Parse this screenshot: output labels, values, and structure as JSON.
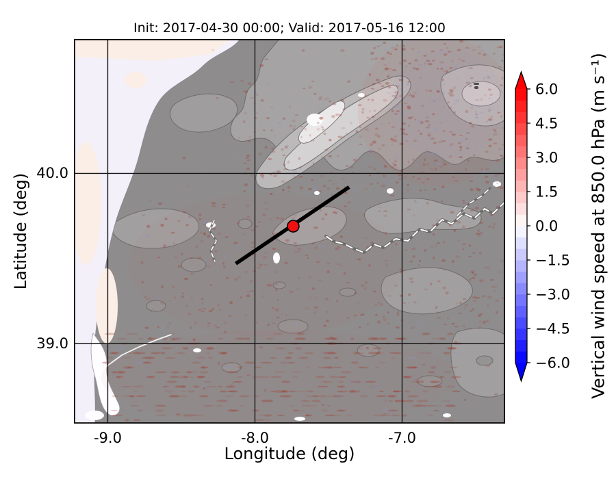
{
  "chart_data": {
    "type": "heatmap",
    "title": "Init: 2017-04-30 00:00; Valid: 2017-05-16 12:00",
    "xlabel": "Longitude (deg)",
    "ylabel": "Latitude (deg)",
    "x_tick_values": [
      -9.0,
      -8.0,
      -7.0
    ],
    "x_tick_labels": [
      "-9.0",
      "-8.0",
      "-7.0"
    ],
    "y_tick_values": [
      40.0,
      39.0
    ],
    "y_tick_labels": [
      "40.0",
      "39.0"
    ],
    "extent": {
      "lon_min": -9.23,
      "lon_max": -6.3,
      "lat_min": 38.53,
      "lat_max": 40.79
    },
    "gridlines": true,
    "colorbar": {
      "label": "Vertical wind speed at 850.0 hPa (m s⁻¹)",
      "tick_values": [
        6.0,
        4.5,
        3.0,
        1.5,
        0.0,
        -1.5,
        -3.0,
        -4.5,
        -6.0
      ],
      "tick_labels": [
        "6.0",
        "4.5",
        "3.0",
        "1.5",
        "0.0",
        "−1.5",
        "−3.0",
        "−4.5",
        "−6.0"
      ],
      "vmin": -6.0,
      "vmax": 6.0,
      "band_step": 0.5,
      "colormap": "bwr",
      "extend": "both",
      "over_color": "#ff0000",
      "under_color": "#0000ff"
    },
    "overlays": {
      "cross_section_line": {
        "lon_start": -8.13,
        "lat_start": 39.47,
        "lon_end": -7.36,
        "lat_end": 39.92,
        "color": "#000000"
      },
      "marker": {
        "lon": -7.74,
        "lat": 39.69,
        "color": "#ee1111",
        "edge_color": "#000000"
      }
    }
  }
}
